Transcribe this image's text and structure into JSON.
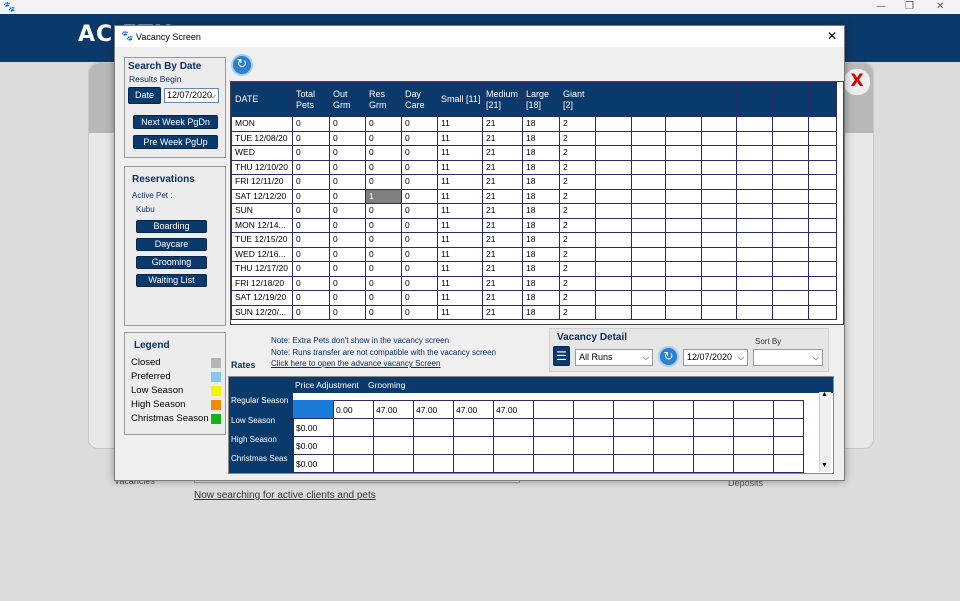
{
  "window": {
    "controls": [
      "—",
      "❐",
      "✕"
    ]
  },
  "background": {
    "logo": "AC ETH",
    "bottom_left_label": "Vacancies",
    "status_text": "Now searching for active clients and pets",
    "bottom_right_label": "Deposits",
    "close_glyph": "X"
  },
  "dialog": {
    "title": "Vacancy Screen",
    "close_glyph": "✕"
  },
  "search": {
    "title": "Search By Date",
    "results_begin": "Results Begin",
    "date_button": "Date",
    "date_value": "12/07/2020",
    "next_week": "Next Week PgDn",
    "prev_week": "Pre Week PgUp"
  },
  "reservations": {
    "title": "Reservations",
    "active_pet_label": "Active Pet :",
    "active_pet": "Kubu",
    "buttons": [
      "Boarding",
      "Daycare",
      "Grooming",
      "Waiting List"
    ]
  },
  "legend": {
    "title": "Legend",
    "items": [
      {
        "label": "Closed",
        "color": "#b4b4b4"
      },
      {
        "label": "Preferred",
        "color": "#86c8ec"
      },
      {
        "label": "Low Season",
        "color": "#f5f500"
      },
      {
        "label": "High Season",
        "color": "#f08a00"
      },
      {
        "label": "Christmas Season",
        "color": "#14b414"
      }
    ]
  },
  "grid": {
    "headers": [
      "DATE",
      "Total Pets",
      "Out Grm",
      "Res Grm",
      "Day Care",
      "Small [11]",
      "Medium [21]",
      "Large [18]",
      "Giant [2]",
      "",
      "",
      "",
      "",
      "",
      "",
      ""
    ],
    "rows": [
      [
        "MON",
        "0",
        "0",
        "0",
        "0",
        "11",
        "21",
        "18",
        "2"
      ],
      [
        "TUE  12/08/20",
        "0",
        "0",
        "0",
        "0",
        "11",
        "21",
        "18",
        "2"
      ],
      [
        "WED",
        "0",
        "0",
        "0",
        "0",
        "11",
        "21",
        "18",
        "2"
      ],
      [
        "THU  12/10/20",
        "0",
        "0",
        "0",
        "0",
        "11",
        "21",
        "18",
        "2"
      ],
      [
        "FRI  12/11/20",
        "0",
        "0",
        "0",
        "0",
        "11",
        "21",
        "18",
        "2"
      ],
      [
        "SAT  12/12/20",
        "0",
        "0",
        "1",
        "0",
        "11",
        "21",
        "18",
        "2"
      ],
      [
        "SUN",
        "0",
        "0",
        "0",
        "0",
        "11",
        "21",
        "18",
        "2"
      ],
      [
        "MON  12/14...",
        "0",
        "0",
        "0",
        "0",
        "11",
        "21",
        "18",
        "2"
      ],
      [
        "TUE  12/15/20",
        "0",
        "0",
        "0",
        "0",
        "11",
        "21",
        "18",
        "2"
      ],
      [
        "WED  12/16...",
        "0",
        "0",
        "0",
        "0",
        "11",
        "21",
        "18",
        "2"
      ],
      [
        "THU  12/17/20",
        "0",
        "0",
        "0",
        "0",
        "11",
        "21",
        "18",
        "2"
      ],
      [
        "FRI  12/18/20",
        "0",
        "0",
        "0",
        "0",
        "11",
        "21",
        "18",
        "2"
      ],
      [
        "SAT  12/19/20",
        "0",
        "0",
        "0",
        "0",
        "11",
        "21",
        "18",
        "2"
      ],
      [
        "SUN  12/20/...",
        "0",
        "0",
        "0",
        "0",
        "11",
        "21",
        "18",
        "2"
      ]
    ]
  },
  "notes": {
    "note1": "Note: Extra Pets don't show in the vacancy screen",
    "note2": "Note: Runs transfer are not compatible with the vacancy screen",
    "link": "Click here to open the advance vacancy Screen"
  },
  "vacancy_detail": {
    "title": "Vacancy Detail",
    "runs": "All Runs",
    "date": "12/07/2020",
    "sort_by_label": "Sort By",
    "sort_by": ""
  },
  "rates": {
    "title": "Rates",
    "headers": [
      "Price Adjustment",
      "Grooming"
    ],
    "row_labels": [
      "Regular Season",
      "Low Season",
      "High Season",
      "Christmas Seas"
    ],
    "rows": [
      [
        "",
        "0.00",
        "47.00",
        "47.00",
        "47.00",
        "47.00",
        "",
        "",
        "",
        "",
        "",
        "",
        ""
      ],
      [
        "$0.00",
        "",
        "",
        "",
        "",
        "",
        "",
        "",
        "",
        "",
        "",
        "",
        ""
      ],
      [
        "$0.00",
        "",
        "",
        "",
        "",
        "",
        "",
        "",
        "",
        "",
        "",
        "",
        ""
      ],
      [
        "$0.00",
        "",
        "",
        "",
        "",
        "",
        "",
        "",
        "",
        "",
        "",
        "",
        ""
      ]
    ]
  }
}
